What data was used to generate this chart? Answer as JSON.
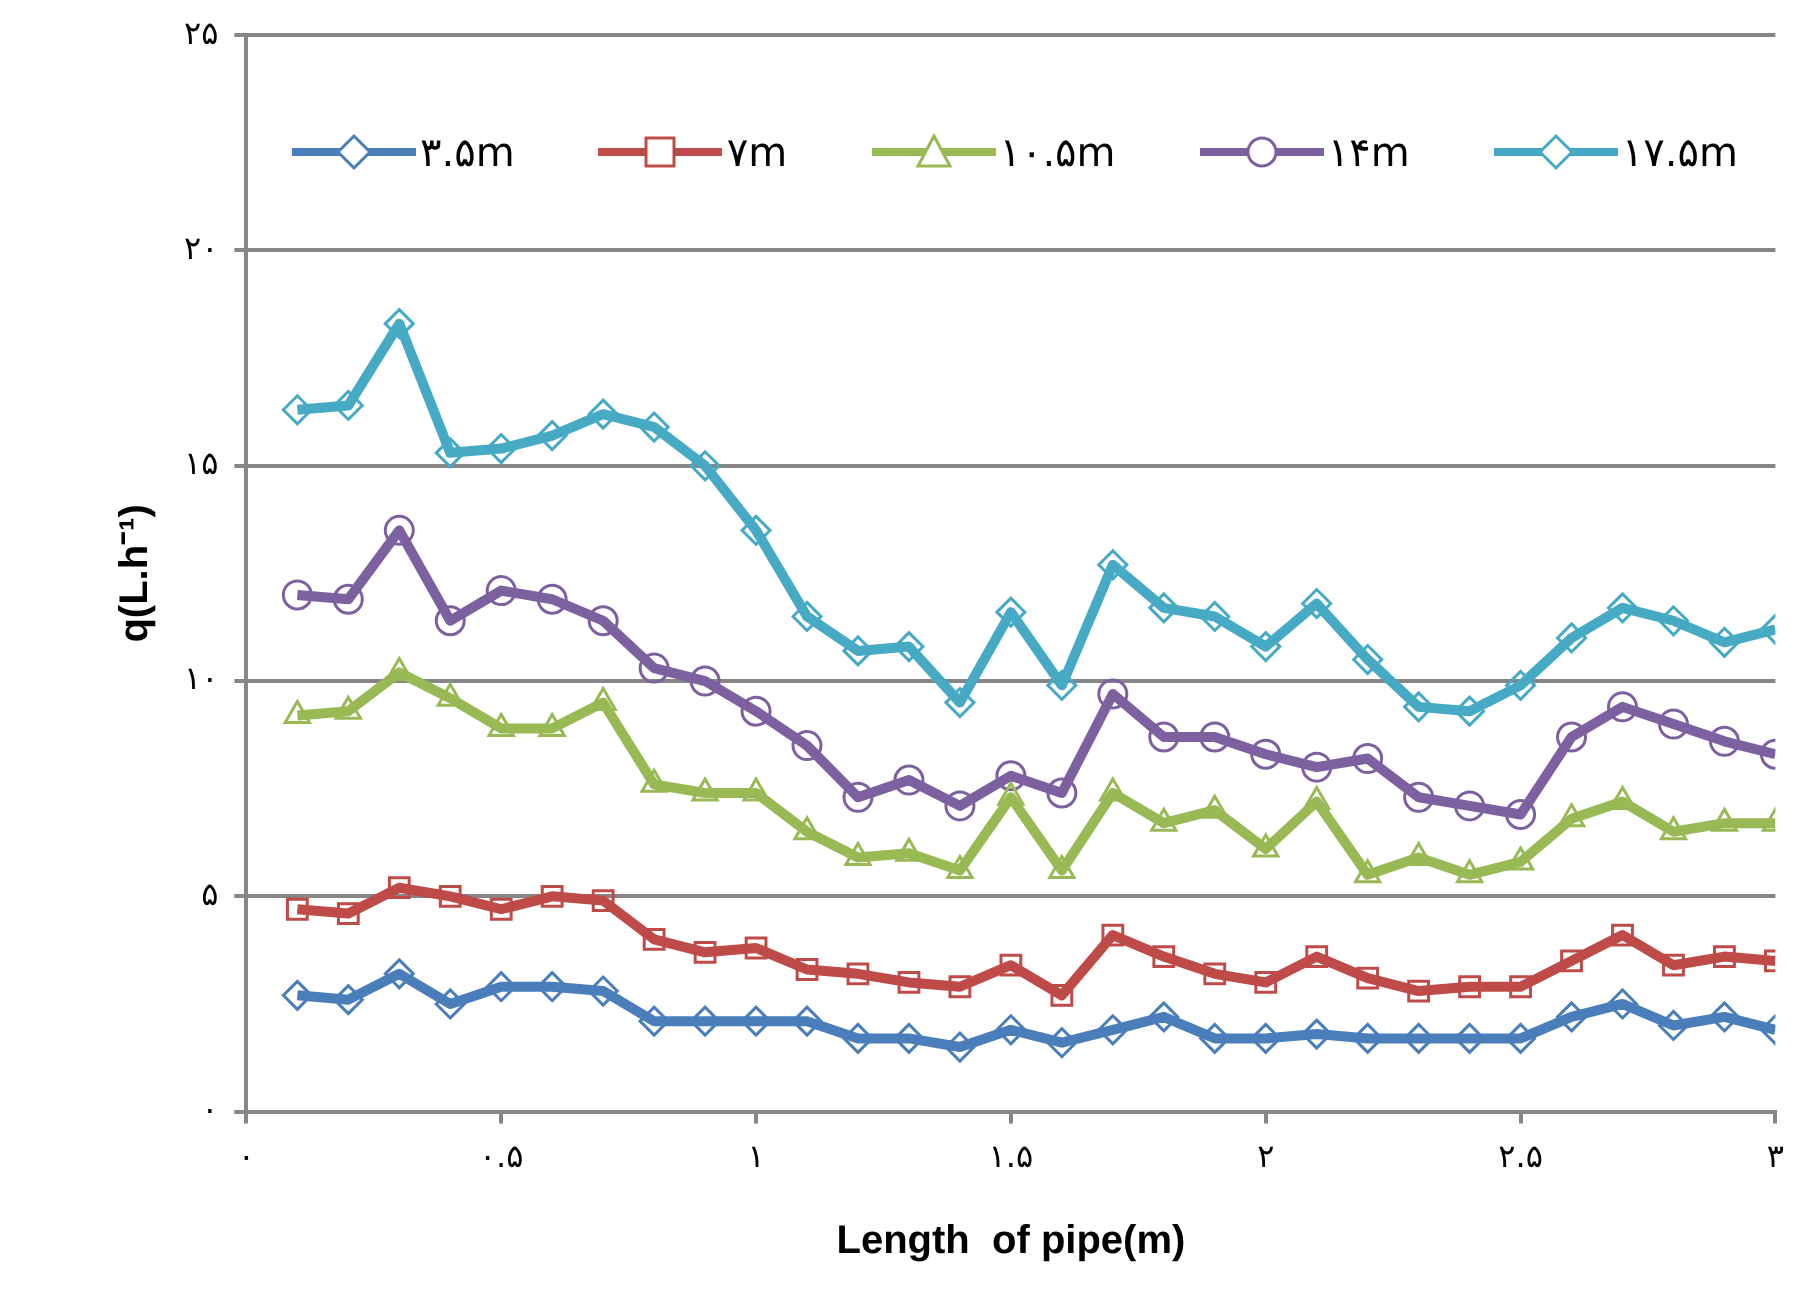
{
  "chart_data": {
    "type": "line",
    "xlabel": "Length  of pipe(m)",
    "ylabel": "q(L.h⁻¹)",
    "x": [
      0.1,
      0.2,
      0.3,
      0.4,
      0.5,
      0.6,
      0.7,
      0.8,
      0.9,
      1.0,
      1.1,
      1.2,
      1.3,
      1.4,
      1.5,
      1.6,
      1.7,
      1.8,
      1.9,
      2.0,
      2.1,
      2.2,
      2.3,
      2.4,
      2.5,
      2.6,
      2.7,
      2.8,
      2.9,
      3.0
    ],
    "series": [
      {
        "name": "۳.۵m",
        "color": "#4a7ebb",
        "marker": "diamond",
        "values": [
          2.7,
          2.6,
          3.2,
          2.5,
          2.9,
          2.9,
          2.8,
          2.1,
          2.1,
          2.1,
          2.1,
          1.7,
          1.7,
          1.5,
          1.9,
          1.6,
          1.9,
          2.2,
          1.7,
          1.7,
          1.8,
          1.7,
          1.7,
          1.7,
          1.7,
          2.2,
          2.5,
          2.0,
          2.2,
          1.9
        ]
      },
      {
        "name": "۷m",
        "color": "#be4b48",
        "marker": "square",
        "values": [
          4.7,
          4.6,
          5.2,
          5.0,
          4.7,
          5.0,
          4.9,
          4.0,
          3.7,
          3.8,
          3.3,
          3.2,
          3.0,
          2.9,
          3.4,
          2.7,
          4.1,
          3.6,
          3.2,
          3.0,
          3.6,
          3.1,
          2.8,
          2.9,
          2.9,
          3.5,
          4.1,
          3.4,
          3.6,
          3.5
        ]
      },
      {
        "name": "۱۰.۵m",
        "color": "#98b954",
        "marker": "triangle",
        "values": [
          9.2,
          9.3,
          10.2,
          9.6,
          8.9,
          8.9,
          9.5,
          7.6,
          7.4,
          7.4,
          6.5,
          5.9,
          6.0,
          5.6,
          7.3,
          5.6,
          7.4,
          6.7,
          7.0,
          6.1,
          7.2,
          5.5,
          5.9,
          5.5,
          5.8,
          6.8,
          7.2,
          6.5,
          6.7,
          6.7
        ]
      },
      {
        "name": "۱۴m",
        "color": "#7d60a0",
        "marker": "circle",
        "values": [
          12.0,
          11.9,
          13.5,
          11.4,
          12.1,
          11.9,
          11.4,
          10.3,
          10.0,
          9.3,
          8.5,
          7.3,
          7.7,
          7.1,
          7.8,
          7.4,
          9.7,
          8.7,
          8.7,
          8.3,
          8.0,
          8.2,
          7.3,
          7.1,
          6.9,
          8.7,
          9.4,
          9.0,
          8.6,
          8.3
        ]
      },
      {
        "name": "۱۷.۵m",
        "color": "#46aac5",
        "marker": "diamond",
        "values": [
          16.3,
          16.4,
          18.3,
          15.3,
          15.4,
          15.7,
          16.2,
          15.9,
          15.0,
          13.5,
          11.5,
          10.7,
          10.8,
          9.5,
          11.6,
          9.9,
          12.7,
          11.7,
          11.5,
          10.8,
          11.8,
          10.5,
          9.4,
          9.3,
          9.9,
          11.0,
          11.7,
          11.4,
          10.9,
          11.2
        ]
      }
    ],
    "xlim": [
      0,
      3
    ],
    "xticks": [
      {
        "value": 0,
        "label": "۰"
      },
      {
        "value": 0.5,
        "label": "۰.۵"
      },
      {
        "value": 1,
        "label": "۱"
      },
      {
        "value": 1.5,
        "label": "۱.۵"
      },
      {
        "value": 2,
        "label": "۲"
      },
      {
        "value": 2.5,
        "label": "۲.۵"
      },
      {
        "value": 3,
        "label": "۳"
      }
    ],
    "ylim": [
      0,
      25
    ],
    "yticks": [
      {
        "value": 0,
        "label": "۰"
      },
      {
        "value": 5,
        "label": "۵"
      },
      {
        "value": 10,
        "label": "۱۰"
      },
      {
        "value": 15,
        "label": "۱۵"
      },
      {
        "value": 20,
        "label": "۲۰"
      },
      {
        "value": 25,
        "label": "۲۵"
      }
    ],
    "grid": "y",
    "legend": "top",
    "line_style": "solid"
  }
}
